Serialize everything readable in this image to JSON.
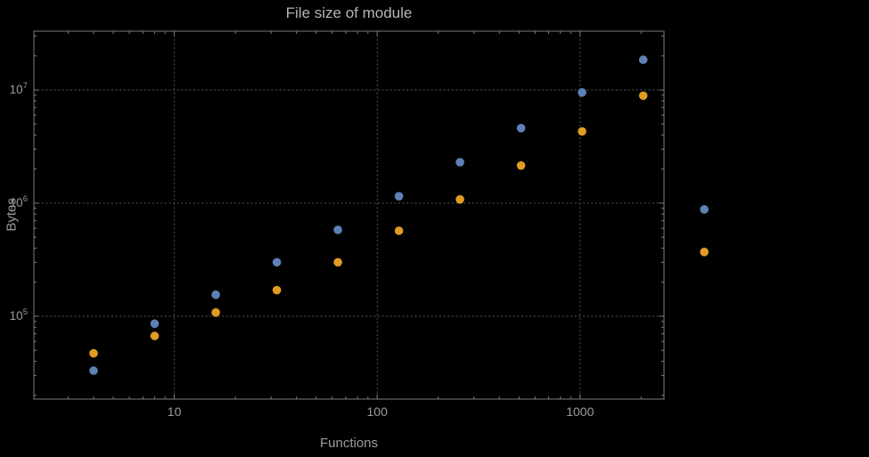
{
  "page": {
    "background_color": "#000000",
    "text_color": "#9c9c9c",
    "title_color": "#b5b5b5"
  },
  "chart_data": {
    "type": "scatter",
    "title": "File size of module",
    "xlabel": "Functions",
    "ylabel": "Bytes",
    "x_scale": "log",
    "y_scale": "log",
    "frame": true,
    "grid": "dotted-major",
    "legend_position": "none",
    "x_range": [
      2.03,
      2600
    ],
    "y_range": [
      18500,
      33100000
    ],
    "x_ticks": [
      {
        "value": 10,
        "label": "10"
      },
      {
        "value": 100,
        "label": "100"
      },
      {
        "value": 1000,
        "label": "1000"
      }
    ],
    "y_ticks": [
      {
        "value": 100000,
        "base": "10",
        "exp": "5"
      },
      {
        "value": 1000000,
        "base": "10",
        "exp": "6"
      },
      {
        "value": 10000000,
        "base": "10",
        "exp": "7"
      }
    ],
    "x": [
      4,
      8,
      16,
      32,
      64,
      128,
      256,
      512,
      1024,
      2048,
      4096
    ],
    "series": [
      {
        "name": "blue",
        "color": "#5e81b5",
        "values": [
          33000,
          86000,
          155000,
          300000,
          580000,
          1150000,
          2300000,
          4600000,
          9500000,
          18500000,
          880000
        ]
      },
      {
        "name": "orange",
        "color": "#e19c24",
        "values": [
          47000,
          67000,
          108000,
          170000,
          300000,
          570000,
          1080000,
          2150000,
          4300000,
          8900000,
          370000
        ]
      }
    ]
  }
}
